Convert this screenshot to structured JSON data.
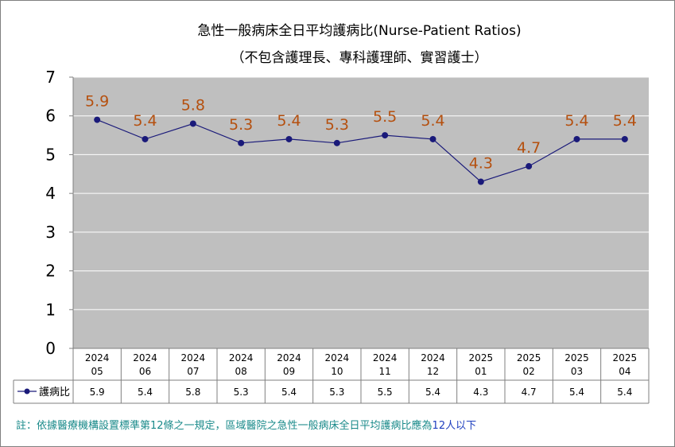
{
  "chart_data": {
    "type": "line",
    "title": "急性一般病床全日平均護病比(Nurse-Patient Ratios)",
    "subtitle": "（不包含護理長、專科護理師、實習護士）",
    "categories": [
      [
        "2024",
        "05"
      ],
      [
        "2024",
        "06"
      ],
      [
        "2024",
        "07"
      ],
      [
        "2024",
        "08"
      ],
      [
        "2024",
        "09"
      ],
      [
        "2024",
        "10"
      ],
      [
        "2024",
        "11"
      ],
      [
        "2024",
        "12"
      ],
      [
        "2025",
        "01"
      ],
      [
        "2025",
        "02"
      ],
      [
        "2025",
        "03"
      ],
      [
        "2025",
        "04"
      ]
    ],
    "series": [
      {
        "name": "護病比",
        "values": [
          5.9,
          5.4,
          5.8,
          5.3,
          5.4,
          5.3,
          5.5,
          5.4,
          4.3,
          4.7,
          5.4,
          5.4
        ],
        "labels": [
          "5.9",
          "5.4",
          "5.8",
          "5.3",
          "5.4",
          "5.3",
          "5.5",
          "5.4",
          "4.3",
          "4.7",
          "5.4",
          "5.4"
        ],
        "color": "#1a1a7a"
      }
    ],
    "ylim": [
      0,
      7
    ],
    "yticks": [
      "0",
      "1",
      "2",
      "3",
      "4",
      "5",
      "6",
      "7"
    ],
    "grid": true,
    "data_table": true,
    "label_color": "#b5500f",
    "plot_background": "#bfbfbf",
    "note": {
      "text": "註：依據醫療機構設置標準第12條之一規定，區域醫院之急性一般病床全日平均護病比應為",
      "highlight": "12人以下",
      "color": "#1a8a8a",
      "highlight_color": "#1f3fbf"
    }
  }
}
